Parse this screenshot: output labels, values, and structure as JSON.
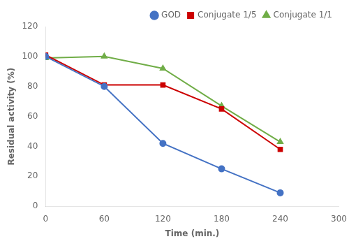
{
  "chart_data": {
    "type": "line",
    "x": [
      0,
      60,
      120,
      180,
      240
    ],
    "series": [
      {
        "name": "GOD",
        "color": "#4472C4",
        "marker": "circle",
        "values": [
          100,
          80,
          42,
          25,
          9
        ]
      },
      {
        "name": "Conjugate 1/5",
        "color": "#CC0000",
        "marker": "square",
        "values": [
          101,
          81,
          81,
          65,
          38
        ]
      },
      {
        "name": "Conjugate 1/1",
        "color": "#70AD47",
        "marker": "triangle",
        "values": [
          99,
          100,
          92,
          67,
          43
        ]
      }
    ],
    "xlabel": "Time (min.)",
    "ylabel": "Residual activity (%)",
    "xlim": [
      0,
      300
    ],
    "ylim": [
      0,
      120
    ],
    "xticks": [
      0,
      60,
      120,
      180,
      240,
      300
    ],
    "yticks": [
      0,
      20,
      40,
      60,
      80,
      100,
      120
    ],
    "grid": false,
    "legend": "upper right"
  }
}
